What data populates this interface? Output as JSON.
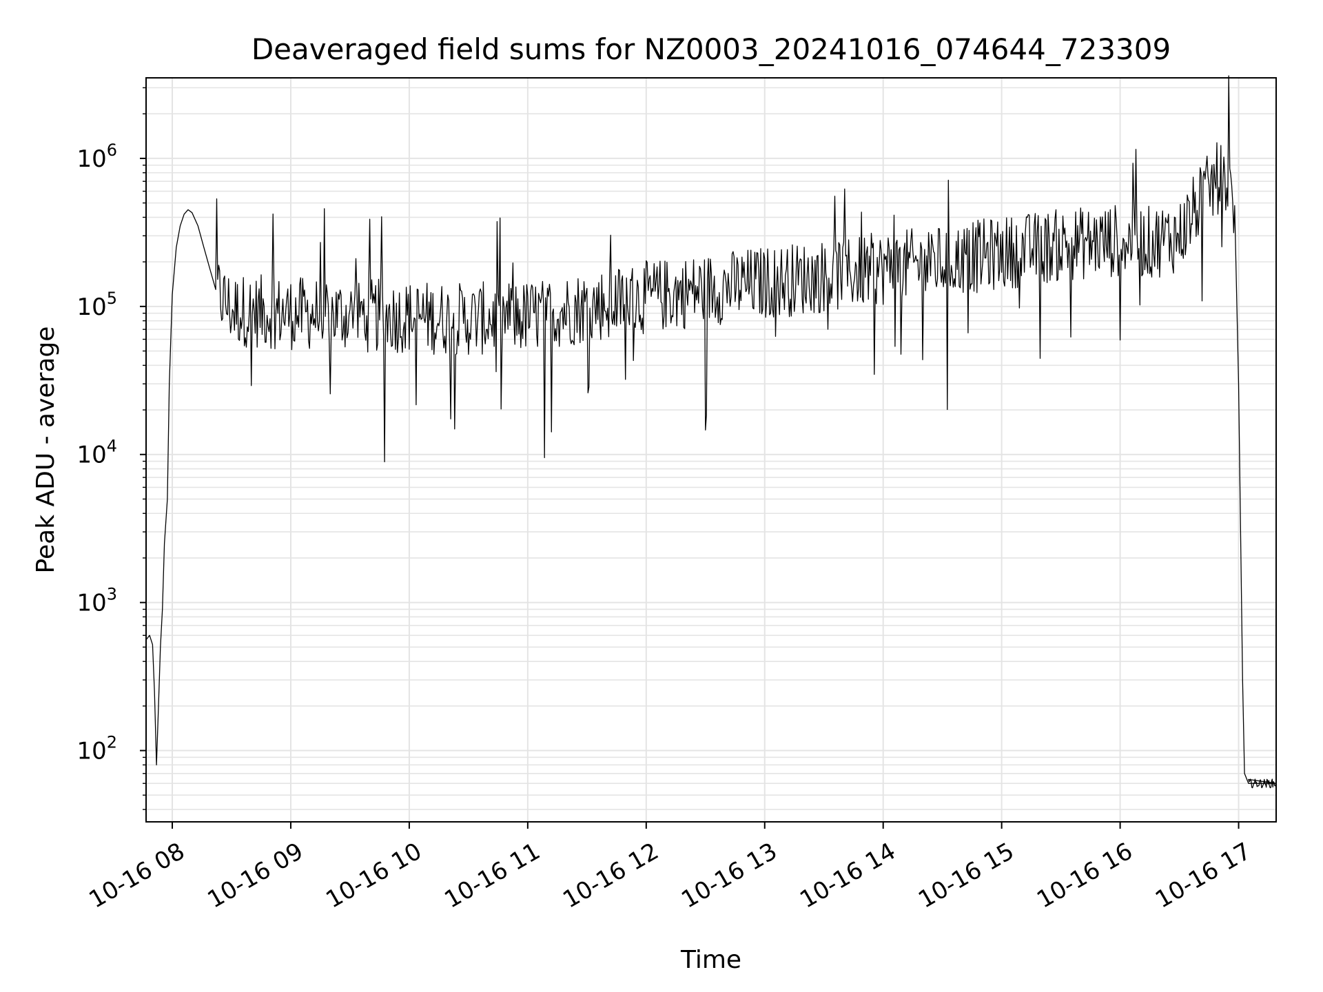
{
  "chart_data": {
    "type": "line",
    "title": "Deaveraged field sums for NZ0003_20241016_074644_723309",
    "xlabel": "Time",
    "ylabel": "Peak ADU - average",
    "yscale": "log",
    "ylim": [
      33,
      3500000
    ],
    "xlim": [
      "2024-10-16T07:46:44",
      "2024-10-16T17:19:00"
    ],
    "grid": true,
    "x_ticks": [
      "10-16 08",
      "10-16 09",
      "10-16 10",
      "10-16 11",
      "10-16 12",
      "10-16 13",
      "10-16 14",
      "10-16 15",
      "10-16 16",
      "10-16 17"
    ],
    "y_ticks": [
      {
        "base": "10",
        "exp": "2",
        "value": 100
      },
      {
        "base": "10",
        "exp": "3",
        "value": 1000
      },
      {
        "base": "10",
        "exp": "4",
        "value": 10000
      },
      {
        "base": "10",
        "exp": "5",
        "value": 100000
      },
      {
        "base": "10",
        "exp": "6",
        "value": 1000000
      }
    ],
    "series": [
      {
        "color": "#000000",
        "points": [
          [
            "2024-10-16T07:46:44",
            560
          ],
          [
            "2024-10-16T07:48:30",
            600
          ],
          [
            "2024-10-16T07:50:00",
            520
          ],
          [
            "2024-10-16T07:51:00",
            250
          ],
          [
            "2024-10-16T07:52:00",
            80
          ],
          [
            "2024-10-16T07:53:00",
            200
          ],
          [
            "2024-10-16T07:54:00",
            500
          ],
          [
            "2024-10-16T07:55:00",
            900
          ],
          [
            "2024-10-16T07:56:00",
            2500
          ],
          [
            "2024-10-16T07:57:30",
            5000
          ],
          [
            "2024-10-16T07:58:30",
            30000
          ],
          [
            "2024-10-16T08:00:00",
            120000
          ],
          [
            "2024-10-16T08:02:00",
            250000
          ],
          [
            "2024-10-16T08:04:00",
            350000
          ],
          [
            "2024-10-16T08:06:00",
            420000
          ],
          [
            "2024-10-16T08:08:00",
            450000
          ],
          [
            "2024-10-16T08:10:00",
            430000
          ],
          [
            "2024-10-16T08:13:00",
            350000
          ],
          [
            "2024-10-16T08:16:00",
            250000
          ],
          [
            "2024-10-16T08:19:00",
            180000
          ],
          [
            "2024-10-16T08:22:00",
            130000
          ],
          [
            "2024-10-16T08:26:00",
            110000
          ],
          [
            "2024-10-16T08:30:00",
            95000
          ],
          [
            "2024-10-16T09:00:00",
            90000
          ],
          [
            "2024-10-16T09:30:00",
            88000
          ],
          [
            "2024-10-16T10:00:00",
            85000
          ],
          [
            "2024-10-16T10:30:00",
            82000
          ],
          [
            "2024-10-16T11:00:00",
            85000
          ],
          [
            "2024-10-16T11:30:00",
            100000
          ],
          [
            "2024-10-16T12:00:00",
            115000
          ],
          [
            "2024-10-16T12:30:00",
            130000
          ],
          [
            "2024-10-16T13:00:00",
            145000
          ],
          [
            "2024-10-16T13:30:00",
            160000
          ],
          [
            "2024-10-16T14:00:00",
            180000
          ],
          [
            "2024-10-16T14:30:00",
            200000
          ],
          [
            "2024-10-16T15:00:00",
            230000
          ],
          [
            "2024-10-16T15:30:00",
            260000
          ],
          [
            "2024-10-16T16:00:00",
            280000
          ],
          [
            "2024-10-16T16:15:00",
            270000
          ],
          [
            "2024-10-16T16:30:00",
            300000
          ],
          [
            "2024-10-16T16:40:00",
            500000
          ],
          [
            "2024-10-16T16:50:00",
            750000
          ],
          [
            "2024-10-16T16:55:00",
            700000
          ],
          [
            "2024-10-16T16:58:00",
            400000
          ],
          [
            "2024-10-16T17:00:00",
            30000
          ],
          [
            "2024-10-16T17:01:00",
            3000
          ],
          [
            "2024-10-16T17:02:00",
            300
          ],
          [
            "2024-10-16T17:03:00",
            70
          ],
          [
            "2024-10-16T17:05:00",
            60
          ],
          [
            "2024-10-16T17:19:00",
            60
          ]
        ],
        "noise": {
          "from": "2024-10-16T08:22:00",
          "to": "2024-10-16T16:58:00",
          "log10_amplitude": 0.25
        }
      }
    ]
  }
}
